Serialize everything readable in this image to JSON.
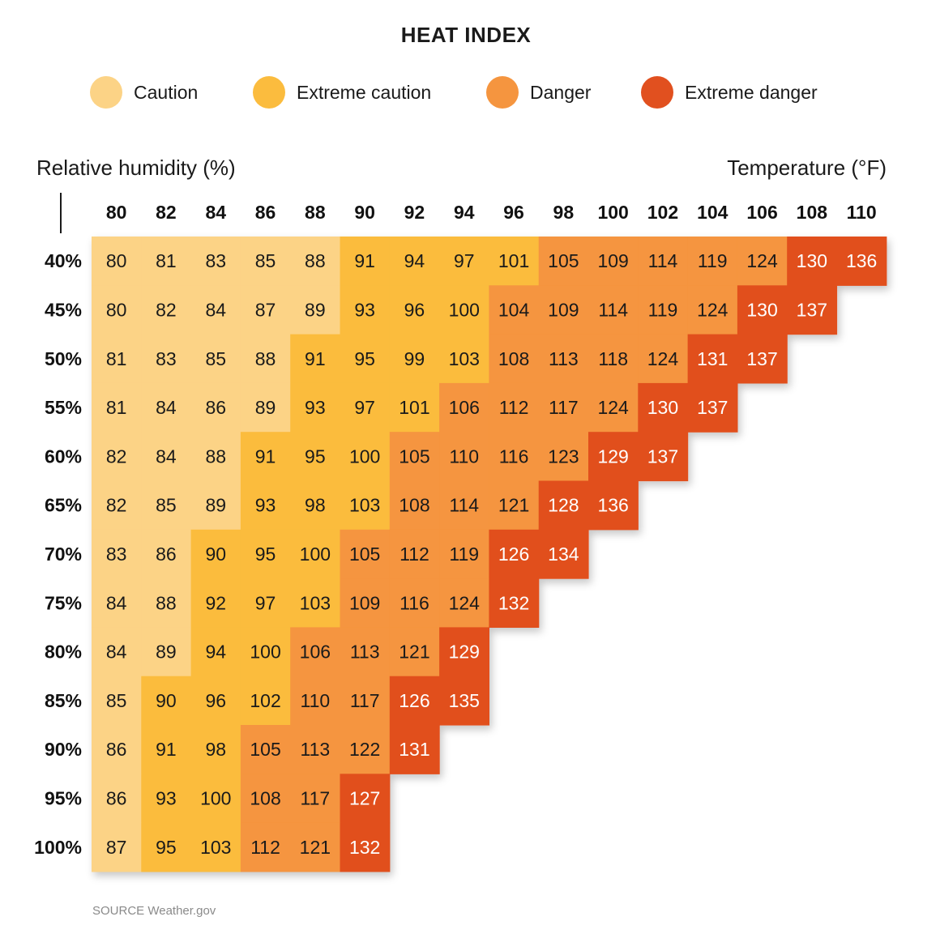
{
  "colors": {
    "caution": "#FCD386",
    "extreme_caution": "#FBBC3E",
    "danger": "#F5953F",
    "extreme_danger": "#E1501F"
  },
  "chart_data": {
    "type": "heatmap",
    "title": "HEAT INDEX",
    "xlabel": "Temperature (°F)",
    "ylabel": "Relative humidity (%)",
    "x_categories": [
      "80",
      "82",
      "84",
      "86",
      "88",
      "90",
      "92",
      "94",
      "96",
      "98",
      "100",
      "102",
      "104",
      "106",
      "108",
      "110"
    ],
    "y_categories": [
      "40%",
      "45%",
      "50%",
      "55%",
      "60%",
      "65%",
      "70%",
      "75%",
      "80%",
      "85%",
      "90%",
      "95%",
      "100%"
    ],
    "legend": [
      {
        "name": "Caution",
        "color_key": "caution"
      },
      {
        "name": "Extreme caution",
        "color_key": "extreme_caution"
      },
      {
        "name": "Danger",
        "color_key": "danger"
      },
      {
        "name": "Extreme danger",
        "color_key": "extreme_danger"
      }
    ],
    "level_thresholds": {
      "extreme_caution": 90,
      "danger": 104,
      "extreme_danger": 125
    },
    "values": [
      [
        80,
        81,
        83,
        85,
        88,
        91,
        94,
        97,
        101,
        105,
        109,
        114,
        119,
        124,
        130,
        136
      ],
      [
        80,
        82,
        84,
        87,
        89,
        93,
        96,
        100,
        104,
        109,
        114,
        119,
        124,
        130,
        137
      ],
      [
        81,
        83,
        85,
        88,
        91,
        95,
        99,
        103,
        108,
        113,
        118,
        124,
        131,
        137
      ],
      [
        81,
        84,
        86,
        89,
        93,
        97,
        101,
        106,
        112,
        117,
        124,
        130,
        137
      ],
      [
        82,
        84,
        88,
        91,
        95,
        100,
        105,
        110,
        116,
        123,
        129,
        137
      ],
      [
        82,
        85,
        89,
        93,
        98,
        103,
        108,
        114,
        121,
        128,
        136
      ],
      [
        83,
        86,
        90,
        95,
        100,
        105,
        112,
        119,
        126,
        134
      ],
      [
        84,
        88,
        92,
        97,
        103,
        109,
        116,
        124,
        132
      ],
      [
        84,
        89,
        94,
        100,
        106,
        113,
        121,
        129
      ],
      [
        85,
        90,
        96,
        102,
        110,
        117,
        126,
        135
      ],
      [
        86,
        91,
        98,
        105,
        113,
        122,
        131
      ],
      [
        86,
        93,
        100,
        108,
        117,
        127
      ],
      [
        87,
        95,
        103,
        112,
        121,
        132
      ]
    ]
  },
  "source": "SOURCE Weather.gov"
}
